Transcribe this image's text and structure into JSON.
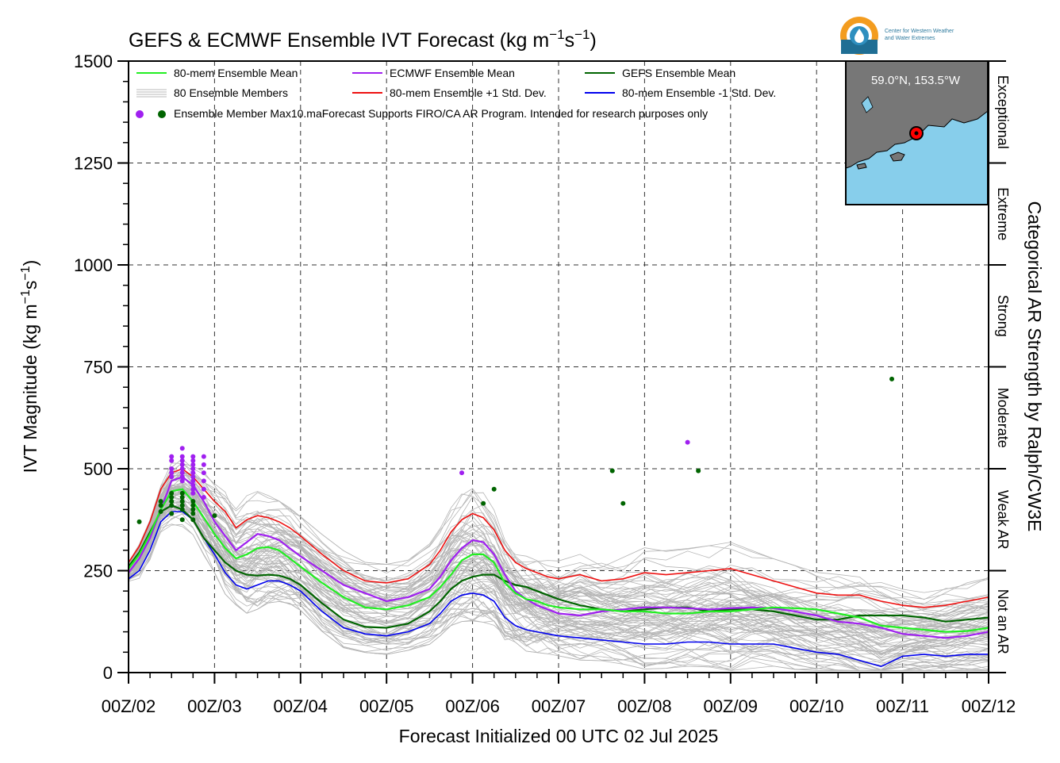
{
  "chart_data": {
    "type": "line",
    "title": "GEFS & ECMWF Ensemble IVT Forecast (kg m$^{-1}$s$^{-1}$)",
    "title_main": "GEFS & ECMWF Ensemble IVT Forecast (kg m",
    "title_exp1": "−1",
    "title_mid": "s",
    "title_exp2": "−1",
    "title_end": ")",
    "xlabel": "Forecast Initialized 00 UTC 02 Jul 2025",
    "ylabel": "IVT Magnitude (kg m−1s−1)",
    "ylabel_main": "IVT Magnitude (kg m",
    "ylabel_exp1": "−1",
    "ylabel_mid": "s",
    "ylabel_exp2": "−1",
    "ylabel_end": ")",
    "right_label": "Categorical AR Strength by Ralph/CW3E",
    "x_tick_labels": [
      "00Z/02",
      "00Z/03",
      "00Z/04",
      "00Z/05",
      "00Z/06",
      "00Z/07",
      "00Z/08",
      "00Z/09",
      "00Z/10",
      "00Z/11",
      "00Z/12"
    ],
    "xlim": [
      0,
      10
    ],
    "ylim": [
      0,
      1500
    ],
    "y_ticks": [
      0,
      250,
      500,
      750,
      1000,
      1250,
      1500
    ],
    "grid": true,
    "legend_position": "top-left",
    "categories": [
      {
        "label": "Not an AR",
        "range": [
          0,
          250
        ]
      },
      {
        "label": "Weak AR",
        "range": [
          250,
          500
        ]
      },
      {
        "label": "Moderate",
        "range": [
          500,
          750
        ]
      },
      {
        "label": "Strong",
        "range": [
          750,
          1000
        ]
      },
      {
        "label": "Extreme",
        "range": [
          1000,
          1250
        ]
      },
      {
        "label": "Exceptional",
        "range": [
          1250,
          1500
        ]
      }
    ],
    "legend": {
      "mean80": "80-mem Ensemble Mean",
      "members": "80 Ensemble Members",
      "max": "Ensemble Member Max",
      "ecmwf": "ECMWF Ensemble Mean",
      "plus": "80-mem Ensemble +1 Std. Dev.",
      "gefs": "GEFS Ensemble Mean",
      "minus": "80-mem Ensemble -1 Std. Dev.",
      "note": "10.maForecast Supports FIRO/CA AR Program. Intended for research purposes only"
    },
    "series": [
      {
        "name": "80-mem Ensemble Mean",
        "color": "#22ee22",
        "x": [
          0,
          0.125,
          0.25,
          0.375,
          0.5,
          0.625,
          0.75,
          0.875,
          1.0,
          1.125,
          1.25,
          1.375,
          1.5,
          1.625,
          1.75,
          1.875,
          2.0,
          2.25,
          2.5,
          2.75,
          3.0,
          3.25,
          3.5,
          3.625,
          3.75,
          3.875,
          4.0,
          4.125,
          4.25,
          4.375,
          4.5,
          4.625,
          4.75,
          4.875,
          5.0,
          5.25,
          5.5,
          5.75,
          6.0,
          6.25,
          6.5,
          6.75,
          7.0,
          7.25,
          7.5,
          7.75,
          8.0,
          8.25,
          8.5,
          8.75,
          9.0,
          9.25,
          9.5,
          9.75,
          10.0
        ],
        "y": [
          255,
          290,
          340,
          400,
          445,
          450,
          420,
          380,
          340,
          305,
          280,
          290,
          305,
          308,
          300,
          280,
          260,
          220,
          185,
          160,
          155,
          165,
          185,
          210,
          240,
          275,
          290,
          290,
          270,
          220,
          195,
          180,
          175,
          165,
          160,
          155,
          155,
          150,
          150,
          145,
          145,
          150,
          150,
          155,
          160,
          158,
          155,
          145,
          135,
          115,
          110,
          105,
          100,
          102,
          110
        ]
      },
      {
        "name": "ECMWF Ensemble Mean",
        "color": "#a020f0",
        "x": [
          0,
          0.125,
          0.25,
          0.375,
          0.5,
          0.625,
          0.75,
          0.875,
          1.0,
          1.125,
          1.25,
          1.375,
          1.5,
          1.625,
          1.75,
          1.875,
          2.0,
          2.25,
          2.5,
          2.75,
          3.0,
          3.25,
          3.5,
          3.625,
          3.75,
          3.875,
          4.0,
          4.125,
          4.25,
          4.375,
          4.5,
          4.625,
          4.75,
          4.875,
          5.0,
          5.25,
          5.5,
          5.75,
          6.0,
          6.25,
          6.5,
          6.75,
          7.0,
          7.25,
          7.5,
          7.75,
          8.0,
          8.25,
          8.5,
          8.75,
          9.0,
          9.25,
          9.5,
          9.75,
          10.0
        ],
        "y": [
          245,
          280,
          330,
          400,
          470,
          480,
          460,
          420,
          370,
          335,
          300,
          320,
          340,
          335,
          325,
          305,
          285,
          250,
          215,
          195,
          175,
          185,
          205,
          235,
          275,
          305,
          325,
          320,
          290,
          240,
          200,
          180,
          165,
          155,
          145,
          140,
          150,
          155,
          160,
          160,
          158,
          155,
          158,
          160,
          158,
          150,
          140,
          125,
          120,
          110,
          95,
          90,
          85,
          90,
          100
        ]
      },
      {
        "name": "GEFS Ensemble Mean",
        "color": "#006400",
        "x": [
          0,
          0.125,
          0.25,
          0.375,
          0.5,
          0.625,
          0.75,
          0.875,
          1.0,
          1.125,
          1.25,
          1.375,
          1.5,
          1.625,
          1.75,
          1.875,
          2.0,
          2.25,
          2.5,
          2.75,
          3.0,
          3.25,
          3.5,
          3.625,
          3.75,
          3.875,
          4.0,
          4.125,
          4.25,
          4.375,
          4.5,
          4.625,
          4.75,
          4.875,
          5.0,
          5.25,
          5.5,
          5.75,
          6.0,
          6.25,
          6.5,
          6.75,
          7.0,
          7.25,
          7.5,
          7.75,
          8.0,
          8.25,
          8.5,
          8.75,
          9.0,
          9.25,
          9.5,
          9.75,
          10.0
        ],
        "y": [
          260,
          295,
          345,
          395,
          410,
          400,
          375,
          330,
          300,
          270,
          250,
          240,
          238,
          240,
          238,
          230,
          215,
          170,
          130,
          112,
          110,
          120,
          150,
          175,
          205,
          225,
          235,
          240,
          240,
          225,
          215,
          210,
          200,
          190,
          180,
          165,
          155,
          150,
          155,
          160,
          160,
          150,
          155,
          155,
          150,
          140,
          130,
          130,
          140,
          140,
          140,
          135,
          125,
          130,
          135
        ]
      },
      {
        "name": "80-mem Ensemble +1 Std. Dev.",
        "color": "#ee1111",
        "x": [
          0,
          0.125,
          0.25,
          0.375,
          0.5,
          0.625,
          0.75,
          0.875,
          1.0,
          1.125,
          1.25,
          1.375,
          1.5,
          1.625,
          1.75,
          1.875,
          2.0,
          2.25,
          2.5,
          2.75,
          3.0,
          3.25,
          3.5,
          3.625,
          3.75,
          3.875,
          4.0,
          4.125,
          4.25,
          4.375,
          4.5,
          4.625,
          4.75,
          4.875,
          5.0,
          5.25,
          5.5,
          5.75,
          6.0,
          6.25,
          6.5,
          6.75,
          7.0,
          7.25,
          7.5,
          7.75,
          8.0,
          8.25,
          8.5,
          8.75,
          9.0,
          9.25,
          9.5,
          9.75,
          10.0
        ],
        "y": [
          270,
          310,
          370,
          450,
          490,
          500,
          480,
          450,
          420,
          395,
          355,
          375,
          385,
          380,
          370,
          355,
          335,
          290,
          250,
          225,
          220,
          230,
          265,
          300,
          345,
          375,
          390,
          380,
          350,
          300,
          270,
          255,
          245,
          235,
          230,
          240,
          225,
          230,
          245,
          240,
          245,
          250,
          255,
          240,
          225,
          210,
          195,
          190,
          190,
          175,
          165,
          160,
          165,
          175,
          185
        ]
      },
      {
        "name": "80-mem Ensemble -1 Std. Dev.",
        "color": "#0000ee",
        "x": [
          0,
          0.125,
          0.25,
          0.375,
          0.5,
          0.625,
          0.75,
          0.875,
          1.0,
          1.125,
          1.25,
          1.375,
          1.5,
          1.625,
          1.75,
          1.875,
          2.0,
          2.25,
          2.5,
          2.75,
          3.0,
          3.25,
          3.5,
          3.625,
          3.75,
          3.875,
          4.0,
          4.125,
          4.25,
          4.375,
          4.5,
          4.625,
          4.75,
          4.875,
          5.0,
          5.25,
          5.5,
          5.75,
          6.0,
          6.25,
          6.5,
          6.75,
          7.0,
          7.25,
          7.5,
          7.75,
          8.0,
          8.25,
          8.5,
          8.75,
          9.0,
          9.25,
          9.5,
          9.75,
          10.0
        ],
        "y": [
          230,
          250,
          300,
          370,
          395,
          395,
          375,
          330,
          290,
          245,
          215,
          205,
          215,
          225,
          225,
          215,
          200,
          150,
          110,
          95,
          90,
          100,
          120,
          145,
          175,
          190,
          195,
          190,
          175,
          135,
          115,
          105,
          100,
          95,
          90,
          85,
          80,
          75,
          70,
          70,
          75,
          75,
          70,
          70,
          70,
          60,
          50,
          45,
          30,
          15,
          40,
          45,
          40,
          45,
          45
        ]
      }
    ],
    "members_note": "80 gray ensemble member traces, spread roughly between the ±1 Std. Dev. lines",
    "max_points": [
      {
        "model": "ECMWF",
        "color": "#a020f0",
        "x": [
          0.5,
          0.5,
          0.5,
          0.5,
          0.5,
          0.625,
          0.625,
          0.625,
          0.625,
          0.625,
          0.625,
          0.625,
          0.625,
          0.75,
          0.75,
          0.75,
          0.75,
          0.75,
          0.75,
          0.75,
          0.75,
          0.75,
          0.75,
          0.875,
          0.875,
          0.875,
          0.875,
          0.875,
          0.875,
          3.875,
          6.5
        ],
        "y": [
          530,
          520,
          500,
          490,
          480,
          550,
          530,
          520,
          510,
          500,
          490,
          480,
          470,
          530,
          520,
          510,
          500,
          490,
          480,
          470,
          460,
          450,
          440,
          530,
          510,
          490,
          470,
          450,
          430,
          490,
          565
        ]
      },
      {
        "model": "GEFS",
        "color": "#006400",
        "x": [
          0.125,
          0.375,
          0.375,
          0.375,
          0.5,
          0.5,
          0.5,
          0.5,
          0.5,
          0.625,
          0.625,
          0.625,
          0.625,
          0.625,
          0.625,
          0.75,
          0.75,
          0.75,
          0.75,
          0.75,
          1.0,
          4.125,
          4.25,
          5.625,
          5.75,
          6.625,
          8.875
        ],
        "y": [
          370,
          420,
          410,
          395,
          440,
          430,
          420,
          410,
          390,
          440,
          430,
          420,
          410,
          400,
          375,
          420,
          410,
          400,
          390,
          375,
          385,
          415,
          450,
          495,
          415,
          495,
          720
        ]
      }
    ]
  },
  "map": {
    "label": "59.0°N, 153.5°W",
    "ocean_color": "#87ceeb",
    "land_color": "#777777",
    "marker_color": "#ff0000"
  },
  "logo": {
    "line1": "Center for Western Weather",
    "line2": "and Water Extremes",
    "icon": "cw3e-water-drop-logo-icon"
  }
}
